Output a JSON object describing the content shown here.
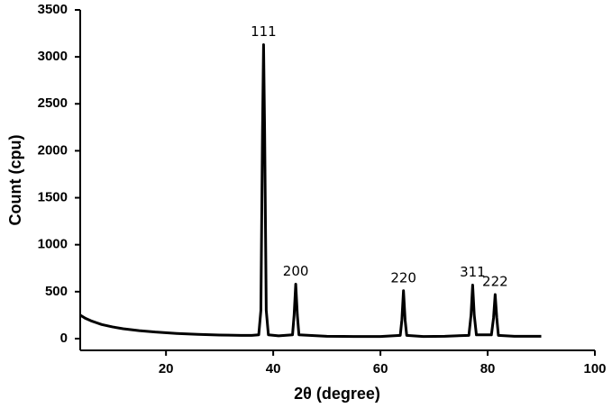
{
  "chart_data": {
    "type": "line",
    "xlabel": "2θ (degree)",
    "ylabel": "Count (cpu)",
    "x": [
      4,
      5,
      6,
      7,
      8,
      10,
      12,
      15,
      18,
      22,
      26,
      30,
      34,
      36,
      37.3,
      37.7,
      38.0,
      38.2,
      38.4,
      38.7,
      39.1,
      41,
      43.6,
      43.9,
      44.2,
      44.5,
      44.8,
      50,
      55,
      60,
      63.7,
      64.0,
      64.3,
      64.6,
      64.9,
      68,
      72,
      76.5,
      76.9,
      77.2,
      77.5,
      77.9,
      80.7,
      81.1,
      81.4,
      81.7,
      82.0,
      85,
      90
    ],
    "values": [
      250,
      215,
      190,
      170,
      150,
      125,
      105,
      85,
      70,
      55,
      45,
      38,
      35,
      35,
      40,
      300,
      2200,
      3130,
      2200,
      300,
      40,
      30,
      40,
      250,
      580,
      250,
      40,
      25,
      22,
      22,
      35,
      200,
      510,
      200,
      35,
      22,
      25,
      35,
      250,
      570,
      250,
      40,
      40,
      220,
      470,
      220,
      35,
      25,
      25
    ],
    "color": "#000000",
    "xlim": [
      4,
      100
    ],
    "ylim": [
      -125,
      3500
    ],
    "xticks": [
      20,
      40,
      60,
      80,
      100
    ],
    "yticks": [
      0,
      500,
      1000,
      1500,
      2000,
      2500,
      3000,
      3500
    ],
    "annotations": [
      {
        "text": "111",
        "x": 38.2,
        "y": 3130
      },
      {
        "text": "200",
        "x": 44.2,
        "y": 580
      },
      {
        "text": "220",
        "x": 64.3,
        "y": 510
      },
      {
        "text": "311",
        "x": 77.2,
        "y": 570
      },
      {
        "text": "222",
        "x": 81.4,
        "y": 470
      }
    ]
  }
}
